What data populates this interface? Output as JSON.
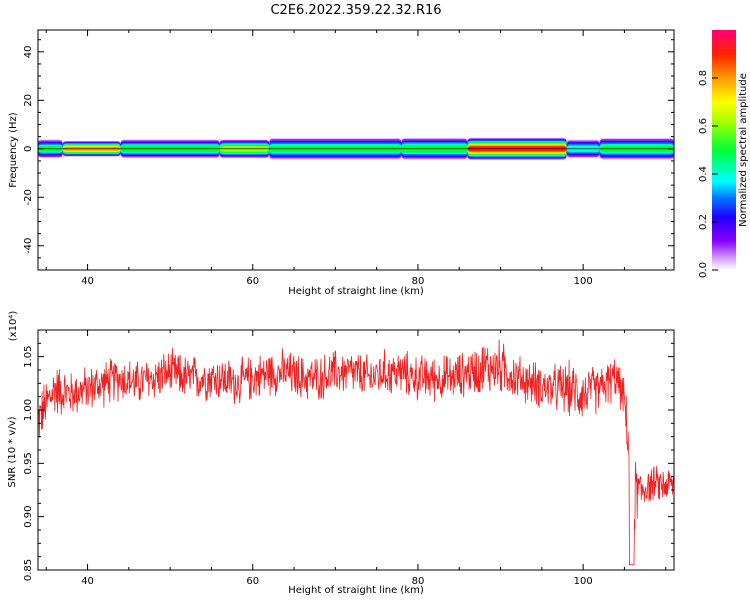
{
  "title": "C2E6.2022.359.22.32.R16",
  "chart_data": [
    {
      "type": "heatmap",
      "xlabel": "Height of straight line (km)",
      "ylabel": "Frequency (Hz)",
      "xlim": [
        34,
        111
      ],
      "ylim": [
        -50,
        49
      ],
      "xticks": [
        "40",
        "60",
        "80",
        "100"
      ],
      "xtick_values": [
        40,
        60,
        80,
        100
      ],
      "yticks": [
        "-40",
        "-20",
        "0",
        "20",
        "40"
      ],
      "ytick_values": [
        -40,
        -20,
        0,
        20,
        40
      ],
      "colorbar": {
        "label": "Normalized spectral amplitude",
        "range": [
          0,
          1
        ],
        "ticks": [
          "0.0",
          "0.2",
          "0.4",
          "0.6",
          "0.8"
        ],
        "tick_values": [
          0,
          0.2,
          0.4,
          0.6,
          0.8
        ],
        "colormap": "hsv-rainbow (white → violet → blue → cyan → green → yellow → orange → red → magenta)"
      },
      "band": {
        "center_frequency_hz": 0,
        "segments": [
          {
            "x_from": 34,
            "x_to": 37,
            "peak_amplitude": 0.5,
            "half_width_hz": 3
          },
          {
            "x_from": 37,
            "x_to": 44,
            "peak_amplitude": 0.8,
            "half_width_hz": 2.5
          },
          {
            "x_from": 44,
            "x_to": 56,
            "peak_amplitude": 0.55,
            "half_width_hz": 3
          },
          {
            "x_from": 56,
            "x_to": 62,
            "peak_amplitude": 0.65,
            "half_width_hz": 3
          },
          {
            "x_from": 62,
            "x_to": 78,
            "peak_amplitude": 0.5,
            "half_width_hz": 3.5
          },
          {
            "x_from": 78,
            "x_to": 86,
            "peak_amplitude": 0.55,
            "half_width_hz": 3.5
          },
          {
            "x_from": 86,
            "x_to": 98,
            "peak_amplitude": 0.9,
            "half_width_hz": 3.5
          },
          {
            "x_from": 98,
            "x_to": 102,
            "peak_amplitude": 0.45,
            "half_width_hz": 3
          },
          {
            "x_from": 102,
            "x_to": 111,
            "peak_amplitude": 0.5,
            "half_width_hz": 3.5
          }
        ]
      }
    },
    {
      "type": "line",
      "xlabel": "Height of straight line (km)",
      "ylabel": "SNR (10 * v/v)",
      "y_multiplier": "(x10⁴)",
      "xlim": [
        34,
        111
      ],
      "ylim": [
        0.85,
        1.075
      ],
      "xticks": [
        "40",
        "60",
        "80",
        "100"
      ],
      "xtick_values": [
        40,
        60,
        80,
        100
      ],
      "yticks": [
        "0.85",
        "0.90",
        "0.95",
        "1.00",
        "1.05"
      ],
      "ytick_values": [
        0.85,
        0.9,
        0.95,
        1.0,
        1.05
      ],
      "series": [
        {
          "color": "#ee2222",
          "x": [
            34,
            36,
            38,
            40,
            42,
            44,
            46,
            48,
            50,
            52,
            54,
            56,
            58,
            60,
            62,
            64,
            66,
            68,
            70,
            72,
            74,
            76,
            78,
            80,
            82,
            84,
            86,
            88,
            90,
            92,
            94,
            96,
            98,
            100,
            102,
            104,
            105,
            106,
            107,
            108,
            110,
            111
          ],
          "mean": [
            0.99,
            1.02,
            1.015,
            1.02,
            1.025,
            1.03,
            1.025,
            1.03,
            1.035,
            1.03,
            1.03,
            1.03,
            1.025,
            1.03,
            1.035,
            1.035,
            1.03,
            1.03,
            1.035,
            1.035,
            1.03,
            1.035,
            1.035,
            1.03,
            1.03,
            1.03,
            1.035,
            1.04,
            1.04,
            1.03,
            1.025,
            1.02,
            1.02,
            1.015,
            1.02,
            1.03,
            1.01,
            0.92,
            0.925,
            0.93,
            0.93,
            0.93
          ],
          "noise": [
            0.03,
            0.03,
            0.025,
            0.025,
            0.025,
            0.025,
            0.025,
            0.025,
            0.025,
            0.025,
            0.025,
            0.025,
            0.025,
            0.025,
            0.025,
            0.025,
            0.025,
            0.025,
            0.025,
            0.025,
            0.025,
            0.025,
            0.025,
            0.025,
            0.025,
            0.025,
            0.025,
            0.03,
            0.03,
            0.025,
            0.025,
            0.025,
            0.03,
            0.03,
            0.025,
            0.025,
            0.02,
            0.05,
            0.025,
            0.02,
            0.02,
            0.02
          ],
          "min": 0.85,
          "max": 1.075
        }
      ]
    }
  ]
}
